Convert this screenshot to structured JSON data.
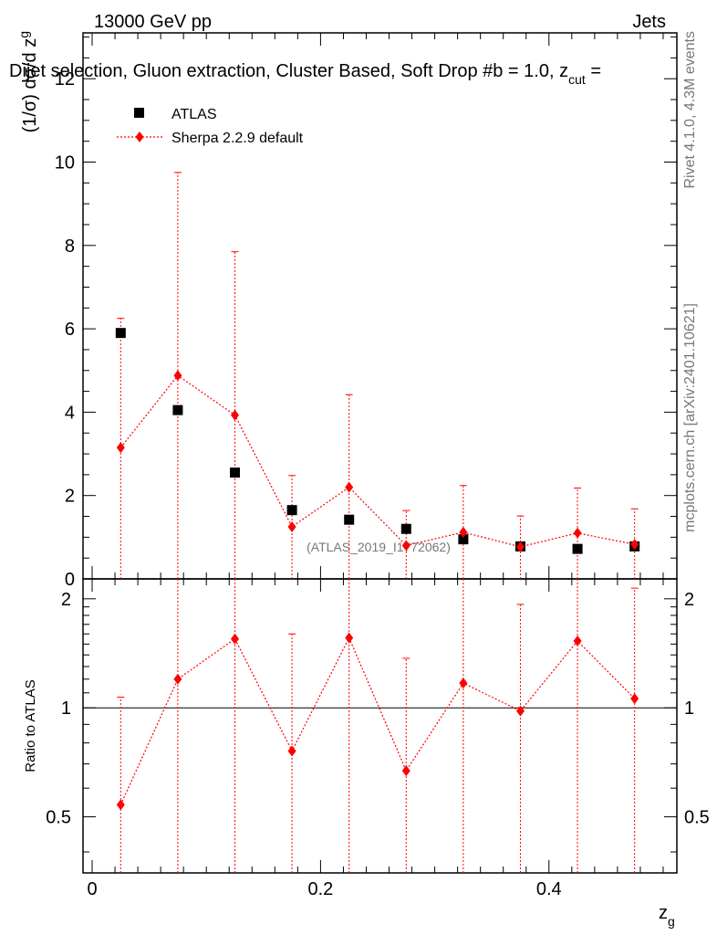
{
  "header": {
    "energy_label": "13000 GeV pp",
    "category_label": "Jets",
    "plot_title": "Dijet selection, Gluon extraction, Cluster Based, Soft Drop #b = 1.0, z",
    "plot_title_sub": "cut",
    "plot_title_tail": " ="
  },
  "side_labels": {
    "rivet": "Rivet 4.1.0,  4.3M events",
    "mcplots": "mcplots.cern.ch [arXiv:2401.10621]"
  },
  "watermark": "(ATLAS_2019_I1772062)",
  "chart_data": {
    "type": "scatter",
    "title": "Dijet selection, Gluon extraction, Cluster Based, Soft Drop #b = 1.0, z_cut =",
    "xlabel": "z",
    "xlabel_sub": "g",
    "ylabel": "(1/σ) dσ/d z",
    "ylabel_sub": "g",
    "ratio_ylabel": "Ratio to ATLAS",
    "xlim": [
      -0.008,
      0.512
    ],
    "ylim": [
      0,
      13.1
    ],
    "ratio_ylim": [
      0.35,
      2.27
    ],
    "x_ticks": [
      0,
      0.2,
      0.4
    ],
    "x_tick_labels": [
      "0",
      "0.2",
      "0.4"
    ],
    "y_ticks": [
      0,
      2,
      4,
      6,
      8,
      10,
      12
    ],
    "y_tick_labels": [
      "0",
      "2",
      "4",
      "6",
      "8",
      "10",
      "12"
    ],
    "ratio_ticks": [
      0.5,
      1,
      2
    ],
    "ratio_tick_labels": [
      "0.5",
      "1",
      "2"
    ],
    "legend": {
      "position": "top-left",
      "entries": [
        "ATLAS",
        "Sherpa 2.2.9 default"
      ]
    },
    "x": [
      0.025,
      0.075,
      0.125,
      0.175,
      0.225,
      0.275,
      0.325,
      0.375,
      0.425,
      0.475
    ],
    "series": [
      {
        "name": "ATLAS",
        "color": "#000000",
        "marker": "square",
        "values": [
          5.9,
          4.05,
          2.55,
          1.65,
          1.42,
          1.2,
          0.95,
          0.78,
          0.72,
          0.78
        ],
        "errors": [
          0.1,
          0.1,
          0.05,
          0.05,
          0.05,
          0.04,
          0.04,
          0.03,
          0.03,
          0.03
        ]
      },
      {
        "name": "Sherpa 2.2.9 default",
        "color": "#ff0000",
        "marker": "diamond",
        "values": [
          3.15,
          4.88,
          3.93,
          1.25,
          2.2,
          0.8,
          1.12,
          0.77,
          1.1,
          0.83
        ],
        "err_up": [
          6.25,
          9.75,
          7.85,
          2.48,
          4.42,
          1.64,
          2.24,
          1.51,
          2.18,
          1.68
        ],
        "err_down": [
          0,
          0,
          0,
          0,
          0,
          0,
          0,
          0,
          0,
          0
        ],
        "ratio": [
          0.54,
          1.2,
          1.55,
          0.76,
          1.56,
          0.67,
          1.17,
          0.98,
          1.53,
          1.06
        ],
        "ratio_up": [
          1.07,
          2.27,
          2.27,
          1.6,
          2.27,
          1.37,
          2.27,
          1.93,
          2.27,
          2.14
        ],
        "ratio_down": [
          0.35,
          0.35,
          0.35,
          0.35,
          0.35,
          0.35,
          0.35,
          0.35,
          0.35,
          0.35
        ]
      }
    ]
  }
}
